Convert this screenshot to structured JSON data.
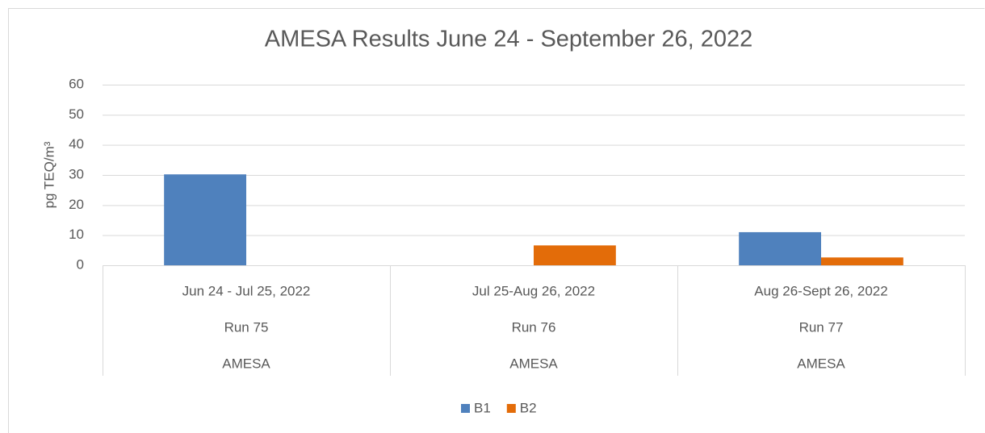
{
  "chart_data": {
    "type": "bar",
    "title": "AMESA Results June 24 - September 26, 2022",
    "ylabel": "pg TEQ/m³",
    "categories": [
      [
        "Jun 24 - Jul 25, 2022",
        "Run 75",
        "AMESA"
      ],
      [
        "Jul 25-Aug 26, 2022",
        "Run 76",
        "AMESA"
      ],
      [
        "Aug 26-Sept 26, 2022",
        "Run 77",
        "AMESA"
      ]
    ],
    "series": [
      {
        "name": "B1",
        "color": "#4f81bd",
        "values": [
          30.2,
          null,
          11
        ]
      },
      {
        "name": "B2",
        "color": "#e36c09",
        "values": [
          null,
          6.6,
          2.6
        ]
      }
    ],
    "ylim": [
      0,
      60
    ],
    "yticks": [
      0,
      10,
      20,
      30,
      40,
      50,
      60
    ],
    "grid": true,
    "legend": "bottom"
  }
}
